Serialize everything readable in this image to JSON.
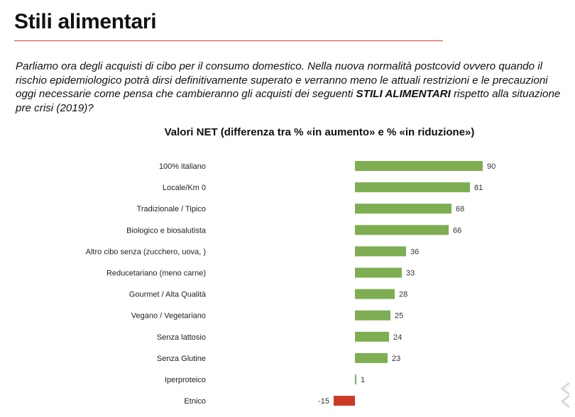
{
  "page": {
    "title": "Stili alimentari",
    "question_intro": "Parliamo ora degli acquisti di cibo per il consumo domestico. Nella nuova normalità postcovid ovvero quando il rischio epidemiologico potrà dirsi definitivamente superato e verranno meno le attuali restrizioni e le precauzioni oggi necessarie come pensa che cambieranno gli acquisti dei seguenti ",
    "question_bold": "STILI ALIMENTARI",
    "question_outro": " rispetto alla situazione pre crisi (2019)?"
  },
  "colors": {
    "title_rule": "#e23a2f",
    "positive_bar": "#7fae52",
    "negative_bar": "#cc3a25"
  },
  "chart_data": {
    "type": "bar",
    "orientation": "horizontal",
    "title": "Valori NET (differenza tra % «in aumento» e % «in riduzione»)",
    "categories": [
      "100% italiano",
      "Locale/Km 0",
      "Tradizionale / Tipico",
      "Biologico e biosalutista",
      "Altro cibo senza (zucchero, uova, )",
      "Reducetariano (meno carne)",
      "Gourmet / Alta Qualità",
      "Vegano / Vegetariano",
      "Senza lattosio",
      "Senza Glutine",
      "Iperproteico",
      "Etnico"
    ],
    "values": [
      90,
      81,
      68,
      66,
      36,
      33,
      28,
      25,
      24,
      23,
      1,
      -15
    ],
    "xlabel": "",
    "ylabel": "",
    "grid": false,
    "legend": "none"
  }
}
